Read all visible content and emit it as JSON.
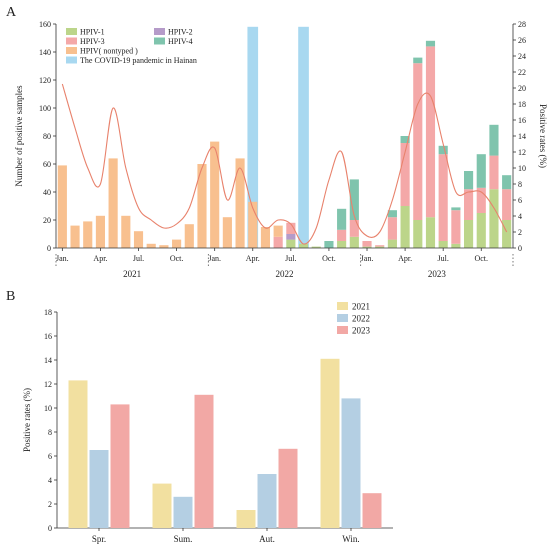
{
  "panels": {
    "a_label": "A",
    "b_label": "B"
  },
  "chart_data": [
    {
      "id": "A",
      "type": "bar",
      "stacked": true,
      "ylabel_left": "Number of positive samples",
      "ylabel_right": "Positive rates (%)",
      "ylim_left": [
        0,
        160
      ],
      "ylim_right": [
        0,
        28
      ],
      "yticks_left": [
        "0",
        "20",
        "40",
        "60",
        "80",
        "100",
        "120",
        "140",
        "160"
      ],
      "yticks_right": [
        "0",
        "2",
        "4",
        "6",
        "8",
        "10",
        "12",
        "14",
        "16",
        "18",
        "20",
        "22",
        "24",
        "26",
        "28"
      ],
      "month_tick_labels": [
        {
          "label": "Jan.",
          "month": 0
        },
        {
          "label": "Apr.",
          "month": 3
        },
        {
          "label": "Jul.",
          "month": 6
        },
        {
          "label": "Oct.",
          "month": 9
        },
        {
          "label": "Jan.",
          "month": 12
        },
        {
          "label": "Apr.",
          "month": 15
        },
        {
          "label": "Jul.",
          "month": 18
        },
        {
          "label": "Oct.",
          "month": 21
        },
        {
          "label": "Jan.",
          "month": 24
        },
        {
          "label": "Apr.",
          "month": 27
        },
        {
          "label": "Jul.",
          "month": 30
        },
        {
          "label": "Oct.",
          "month": 33
        }
      ],
      "year_labels": [
        {
          "label": "2021",
          "center": 5.5
        },
        {
          "label": "2022",
          "center": 17.5
        },
        {
          "label": "2023",
          "center": 29.5
        }
      ],
      "legend": [
        {
          "name": "HPIV-1",
          "color": "#bcd58a",
          "key": "hpiv1"
        },
        {
          "name": "HPIV-2",
          "color": "#b59bc9",
          "key": "hpiv2"
        },
        {
          "name": "HPIV-3",
          "color": "#f4a8a8",
          "key": "hpiv3"
        },
        {
          "name": "HPIV-4",
          "color": "#7fc4ad",
          "key": "hpiv4"
        },
        {
          "name": "HPIV( nontyped )",
          "color": "#f8c08f",
          "key": "nontyped"
        },
        {
          "name": "The COVID-19 pandemic in Hainan",
          "color": "#a8d8f0",
          "key": "covid"
        }
      ],
      "covid_periods": [
        {
          "month": 15,
          "height": 158
        },
        {
          "month": 19,
          "height": 158
        }
      ],
      "months": [
        {
          "month": 0,
          "nontyped": 59
        },
        {
          "month": 1,
          "nontyped": 16
        },
        {
          "month": 2,
          "nontyped": 19
        },
        {
          "month": 3,
          "nontyped": 23
        },
        {
          "month": 4,
          "nontyped": 64
        },
        {
          "month": 5,
          "nontyped": 23
        },
        {
          "month": 6,
          "nontyped": 12
        },
        {
          "month": 7,
          "nontyped": 3
        },
        {
          "month": 8,
          "nontyped": 2
        },
        {
          "month": 9,
          "nontyped": 6
        },
        {
          "month": 10,
          "nontyped": 17
        },
        {
          "month": 11,
          "nontyped": 60
        },
        {
          "month": 12,
          "nontyped": 76
        },
        {
          "month": 13,
          "nontyped": 22
        },
        {
          "month": 14,
          "nontyped": 64
        },
        {
          "month": 15,
          "nontyped": 33
        },
        {
          "month": 16,
          "nontyped": 15
        },
        {
          "month": 17,
          "hpiv3": 8,
          "nontyped": 8
        },
        {
          "month": 18,
          "hpiv1": 6,
          "hpiv3": 8,
          "hpiv2": 4
        },
        {
          "month": 19,
          "hpiv1": 3
        },
        {
          "month": 20,
          "hpiv1": 1
        },
        {
          "month": 21,
          "hpiv4": 5
        },
        {
          "month": 22,
          "hpiv1": 5,
          "hpiv3": 8,
          "hpiv4": 15
        },
        {
          "month": 23,
          "hpiv1": 8,
          "hpiv3": 12,
          "hpiv4": 29
        },
        {
          "month": 24,
          "hpiv1": 1,
          "hpiv3": 4
        },
        {
          "month": 25,
          "hpiv1": 1,
          "hpiv3": 1
        },
        {
          "month": 26,
          "hpiv1": 6,
          "hpiv3": 16,
          "hpiv4": 5
        },
        {
          "month": 27,
          "hpiv1": 30,
          "hpiv3": 45,
          "hpiv4": 5
        },
        {
          "month": 28,
          "hpiv1": 20,
          "hpiv3": 112,
          "hpiv4": 4
        },
        {
          "month": 29,
          "hpiv1": 22,
          "hpiv3": 122,
          "hpiv4": 4
        },
        {
          "month": 30,
          "hpiv1": 5,
          "hpiv3": 62,
          "hpiv4": 6
        },
        {
          "month": 31,
          "hpiv1": 3,
          "hpiv3": 24,
          "hpiv4": 2
        },
        {
          "month": 32,
          "hpiv1": 20,
          "hpiv3": 22,
          "hpiv4": 13
        },
        {
          "month": 33,
          "hpiv1": 25,
          "hpiv3": 18,
          "hpiv4": 24
        },
        {
          "month": 34,
          "hpiv1": 42,
          "hpiv3": 24,
          "hpiv4": 22
        },
        {
          "month": 35,
          "hpiv1": 20,
          "hpiv3": 22,
          "hpiv4": 10
        }
      ],
      "rate_line": {
        "color": "#e8826c",
        "values": [
          20.5,
          15,
          10,
          8,
          17.5,
          10,
          5,
          3.5,
          2.5,
          3,
          5,
          10,
          12.5,
          6,
          10,
          5,
          2.5,
          3.5,
          3,
          0.5,
          2.5,
          8.5,
          12,
          4,
          1.5,
          2,
          6,
          12,
          18,
          19,
          13,
          7,
          7,
          7,
          5,
          2
        ]
      }
    },
    {
      "id": "B",
      "type": "bar",
      "ylabel": "Positive rates (%)",
      "ylim": [
        0,
        18
      ],
      "yticks": [
        "0",
        "2",
        "4",
        "6",
        "8",
        "10",
        "12",
        "14",
        "16",
        "18"
      ],
      "categories": [
        "Spr.",
        "Sum.",
        "Aut.",
        "Win."
      ],
      "series": [
        {
          "name": "2021",
          "color": "#f2e0a0",
          "values": [
            12.3,
            3.7,
            1.5,
            14.1
          ]
        },
        {
          "name": "2022",
          "color": "#b4cfe3",
          "values": [
            6.5,
            2.6,
            4.5,
            10.8
          ]
        },
        {
          "name": "2023",
          "color": "#f2a8a5",
          "values": [
            10.3,
            11.1,
            6.6,
            2.9
          ]
        }
      ]
    }
  ]
}
